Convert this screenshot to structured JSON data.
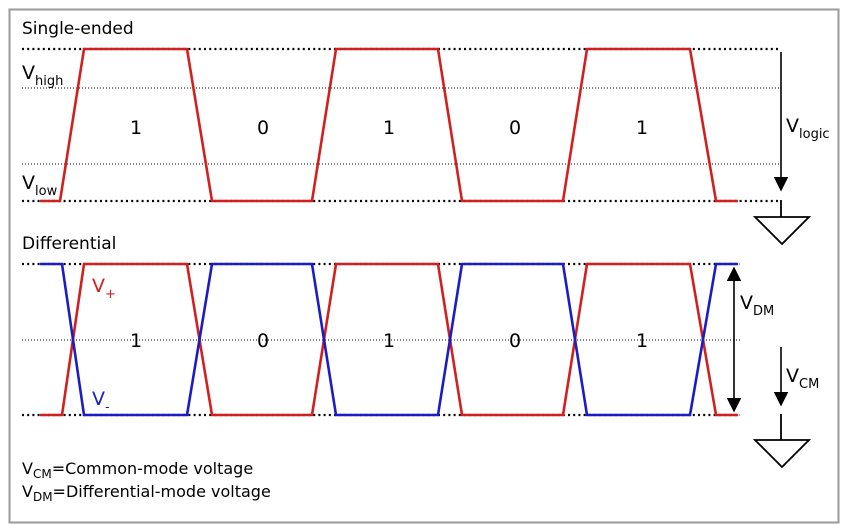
{
  "sections": {
    "single_ended": "Single-ended",
    "differential": "Differential"
  },
  "labels": {
    "v": "V",
    "high_sub": "high",
    "low_sub": "low",
    "logic_sub": "logic",
    "plus_sub": "+",
    "minus_sub": "-",
    "dm_sub": "DM",
    "cm_sub": "CM"
  },
  "bits": [
    "1",
    "0",
    "1",
    "0",
    "1"
  ],
  "legend": {
    "cm_text": "=Common-mode voltage",
    "dm_text": "=Differential-mode voltage"
  },
  "colors": {
    "frame": "#9a9a9a",
    "single_ended_wave": "#d22020",
    "v_plus": "#d22020",
    "v_minus": "#1c1cc4"
  }
}
